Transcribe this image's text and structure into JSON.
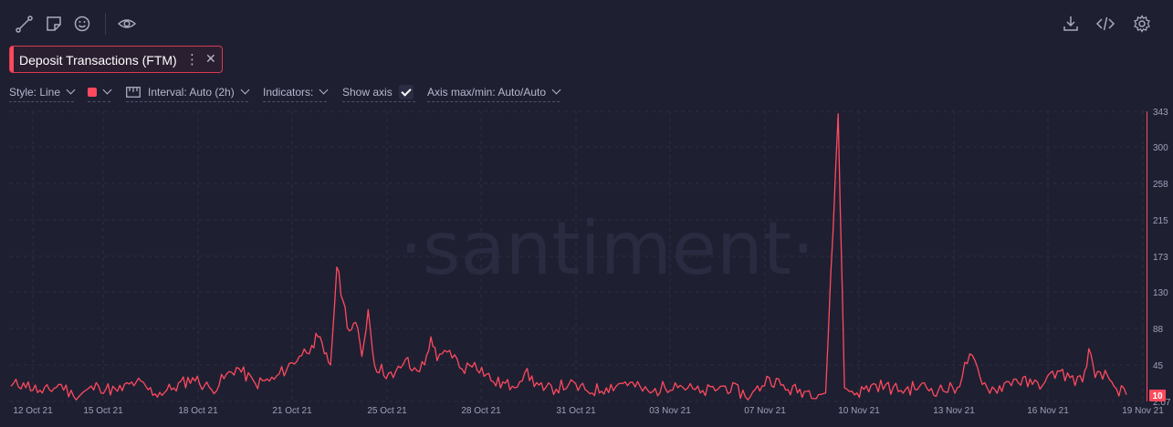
{
  "toolbar": {
    "left_icons": [
      "line-tool-icon",
      "note-icon",
      "emoji-icon",
      "eye-icon"
    ],
    "right_icons": [
      "download-icon",
      "embed-code-icon",
      "gear-icon"
    ]
  },
  "metric": {
    "label": "Deposit Transactions (FTM)",
    "color": "#ff4a5d"
  },
  "settings": {
    "style": "Style: Line",
    "interval": "Interval: Auto (2h)",
    "indicators": "Indicators:",
    "show_axis": "Show axis",
    "show_axis_checked": true,
    "axis_maxmin": "Axis max/min: Auto/Auto"
  },
  "watermark": "·santiment·",
  "chart_data": {
    "type": "line",
    "x_start": "12 Oct 21",
    "x_end": "19 Nov 21",
    "x_ticks": [
      "12 Oct 21",
      "15 Oct 21",
      "18 Oct 21",
      "21 Oct 21",
      "25 Oct 21",
      "28 Oct 21",
      "31 Oct 21",
      "03 Nov 21",
      "07 Nov 21",
      "10 Nov 21",
      "13 Nov 21",
      "16 Nov 21",
      "19 Nov 21"
    ],
    "y_ticks": [
      "343",
      "300",
      "258",
      "215",
      "173",
      "130",
      "88",
      "45",
      "2.07"
    ],
    "ylim": [
      2.07,
      343
    ],
    "last_value": "10",
    "grid": true,
    "series": [
      {
        "color": "#ff4a5d",
        "anchors": [
          [
            0,
            20
          ],
          [
            2,
            24
          ],
          [
            5,
            12
          ],
          [
            8,
            22
          ],
          [
            10,
            8
          ],
          [
            14,
            20
          ],
          [
            17,
            14
          ],
          [
            20,
            25
          ],
          [
            23,
            11
          ],
          [
            26,
            18
          ],
          [
            29,
            30
          ],
          [
            32,
            16
          ],
          [
            36,
            42
          ],
          [
            39,
            23
          ],
          [
            42,
            28
          ],
          [
            46,
            55
          ],
          [
            48,
            68
          ],
          [
            49,
            78
          ],
          [
            50,
            58
          ],
          [
            51,
            45
          ],
          [
            52,
            160
          ],
          [
            53,
            120
          ],
          [
            54,
            85
          ],
          [
            55,
            95
          ],
          [
            56,
            55
          ],
          [
            57,
            110
          ],
          [
            58,
            45
          ],
          [
            61,
            30
          ],
          [
            63,
            52
          ],
          [
            64,
            38
          ],
          [
            66,
            45
          ],
          [
            67,
            78
          ],
          [
            68,
            50
          ],
          [
            70,
            62
          ],
          [
            72,
            40
          ],
          [
            74,
            48
          ],
          [
            77,
            25
          ],
          [
            80,
            20
          ],
          [
            82,
            36
          ],
          [
            85,
            15
          ],
          [
            89,
            22
          ],
          [
            92,
            14
          ],
          [
            95,
            18
          ],
          [
            98,
            25
          ],
          [
            102,
            12
          ],
          [
            106,
            24
          ],
          [
            110,
            12
          ],
          [
            114,
            20
          ],
          [
            118,
            8
          ],
          [
            121,
            30
          ],
          [
            124,
            16
          ],
          [
            127,
            14
          ],
          [
            130,
            12
          ],
          [
            132,
            340
          ],
          [
            133,
            18
          ],
          [
            135,
            12
          ],
          [
            138,
            22
          ],
          [
            142,
            15
          ],
          [
            145,
            20
          ],
          [
            148,
            15
          ],
          [
            151,
            18
          ],
          [
            153,
            58
          ],
          [
            155,
            22
          ],
          [
            157,
            16
          ],
          [
            160,
            28
          ],
          [
            163,
            22
          ],
          [
            165,
            25
          ],
          [
            167,
            38
          ],
          [
            169,
            30
          ],
          [
            171,
            25
          ],
          [
            172,
            64
          ],
          [
            173,
            30
          ],
          [
            175,
            32
          ],
          [
            176,
            20
          ],
          [
            178,
            10
          ]
        ]
      }
    ]
  }
}
